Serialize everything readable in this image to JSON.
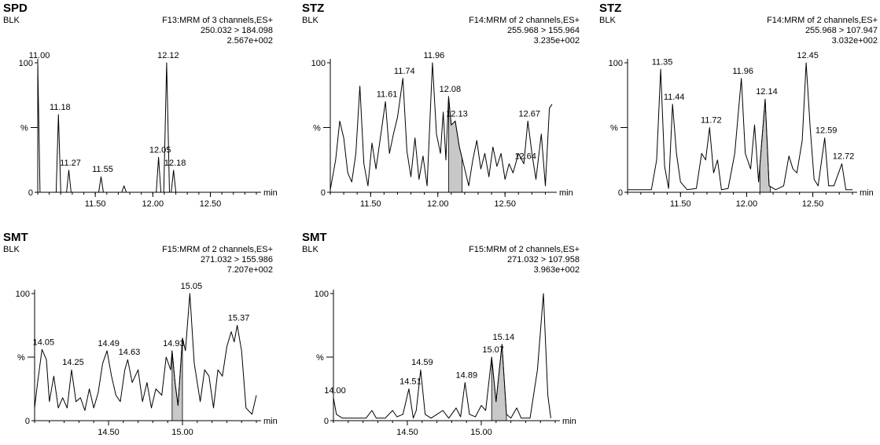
{
  "chart_data": [
    {
      "type": "line",
      "title": "SPD",
      "subtitle": "BLK",
      "header": [
        "F13:MRM of 3 channels,ES+",
        "250.032 > 184.098",
        "2.567e+002"
      ],
      "xlabel": "min",
      "ylabel": "%",
      "xlim": [
        11.0,
        12.9
      ],
      "ylim": [
        0,
        100
      ],
      "xticks": [
        11.5,
        12.0,
        12.5
      ],
      "xtick_labels": [
        "11.50",
        "12.00",
        "12.50"
      ],
      "yticks": [
        0,
        100
      ],
      "ytick_labels": [
        "0",
        "100"
      ],
      "peaks": [
        {
          "label": "11.00",
          "x": 11.0,
          "y": 100,
          "width": 0.02
        },
        {
          "label": "11.18",
          "x": 11.18,
          "y": 60,
          "width": 0.02
        },
        {
          "label": "11.27",
          "x": 11.27,
          "y": 17,
          "width": 0.02
        },
        {
          "label": "11.55",
          "x": 11.55,
          "y": 12,
          "width": 0.02
        },
        {
          "label": "",
          "x": 11.75,
          "y": 5,
          "width": 0.02
        },
        {
          "label": "12.05",
          "x": 12.05,
          "y": 27,
          "width": 0.02
        },
        {
          "label": "12.12",
          "x": 12.12,
          "y": 100,
          "width": 0.025
        },
        {
          "label": "12.18",
          "x": 12.18,
          "y": 17,
          "width": 0.02
        }
      ]
    },
    {
      "type": "line",
      "title": "STZ",
      "subtitle": "BLK",
      "header": [
        "F14:MRM of 2 channels,ES+",
        "255.968 > 155.964",
        "3.235e+002"
      ],
      "xlabel": "min",
      "ylabel": "%",
      "xlim": [
        11.2,
        12.85
      ],
      "ylim": [
        0,
        100
      ],
      "xticks": [
        11.5,
        12.0,
        12.5
      ],
      "xtick_labels": [
        "11.50",
        "12.00",
        "12.50"
      ],
      "yticks": [
        0,
        100
      ],
      "ytick_labels": [
        "0",
        "100"
      ],
      "shaded": [
        12.08,
        12.18
      ],
      "points": [
        [
          11.2,
          2
        ],
        [
          11.24,
          25
        ],
        [
          11.27,
          55
        ],
        [
          11.3,
          42
        ],
        [
          11.33,
          15
        ],
        [
          11.36,
          8
        ],
        [
          11.39,
          30
        ],
        [
          11.42,
          82
        ],
        [
          11.45,
          22
        ],
        [
          11.48,
          5
        ],
        [
          11.51,
          38
        ],
        [
          11.54,
          18
        ],
        [
          11.57,
          40
        ],
        [
          11.61,
          70
        ],
        [
          11.64,
          30
        ],
        [
          11.67,
          45
        ],
        [
          11.7,
          58
        ],
        [
          11.74,
          88
        ],
        [
          11.77,
          32
        ],
        [
          11.8,
          12
        ],
        [
          11.83,
          42
        ],
        [
          11.86,
          10
        ],
        [
          11.89,
          28
        ],
        [
          11.92,
          5
        ],
        [
          11.96,
          100
        ],
        [
          11.99,
          45
        ],
        [
          12.02,
          30
        ],
        [
          12.04,
          62
        ],
        [
          12.06,
          25
        ],
        [
          12.08,
          74
        ],
        [
          12.1,
          52
        ],
        [
          12.13,
          55
        ],
        [
          12.16,
          35
        ],
        [
          12.2,
          18
        ],
        [
          12.23,
          5
        ],
        [
          12.26,
          25
        ],
        [
          12.29,
          40
        ],
        [
          12.32,
          18
        ],
        [
          12.35,
          30
        ],
        [
          12.38,
          12
        ],
        [
          12.41,
          35
        ],
        [
          12.44,
          20
        ],
        [
          12.47,
          30
        ],
        [
          12.5,
          10
        ],
        [
          12.53,
          22
        ],
        [
          12.56,
          15
        ],
        [
          12.6,
          30
        ],
        [
          12.64,
          22
        ],
        [
          12.67,
          55
        ],
        [
          12.7,
          30
        ],
        [
          12.73,
          10
        ],
        [
          12.77,
          45
        ],
        [
          12.8,
          5
        ],
        [
          12.83,
          65
        ],
        [
          12.85,
          68
        ]
      ],
      "labels": [
        {
          "label": "11.61",
          "x": 11.61,
          "y": 70
        },
        {
          "label": "11.74",
          "x": 11.74,
          "y": 88
        },
        {
          "label": "11.96",
          "x": 11.96,
          "y": 100
        },
        {
          "label": "12.08",
          "x": 12.08,
          "y": 74
        },
        {
          "label": "12.13",
          "x": 12.13,
          "y": 55
        },
        {
          "label": "12.67",
          "x": 12.67,
          "y": 55
        },
        {
          "label": "12.64",
          "x": 12.64,
          "y": 22
        }
      ]
    },
    {
      "type": "line",
      "title": "STZ",
      "subtitle": "BLK",
      "header": [
        "F14:MRM of 2 channels,ES+",
        "255.968 > 107.947",
        "3.032e+002"
      ],
      "xlabel": "min",
      "ylabel": "%",
      "xlim": [
        11.1,
        12.8
      ],
      "ylim": [
        0,
        100
      ],
      "xticks": [
        11.5,
        12.0,
        12.5
      ],
      "xtick_labels": [
        "11.50",
        "12.00",
        "12.50"
      ],
      "yticks": [
        0,
        100
      ],
      "ytick_labels": [
        "0",
        "100"
      ],
      "shaded": [
        12.1,
        12.18
      ],
      "points": [
        [
          11.1,
          2
        ],
        [
          11.28,
          2
        ],
        [
          11.32,
          25
        ],
        [
          11.35,
          95
        ],
        [
          11.38,
          20
        ],
        [
          11.41,
          3
        ],
        [
          11.44,
          68
        ],
        [
          11.47,
          30
        ],
        [
          11.5,
          8
        ],
        [
          11.55,
          2
        ],
        [
          11.62,
          3
        ],
        [
          11.66,
          30
        ],
        [
          11.69,
          25
        ],
        [
          11.72,
          50
        ],
        [
          11.75,
          15
        ],
        [
          11.78,
          25
        ],
        [
          11.81,
          2
        ],
        [
          11.86,
          3
        ],
        [
          11.91,
          30
        ],
        [
          11.96,
          88
        ],
        [
          11.99,
          30
        ],
        [
          12.03,
          18
        ],
        [
          12.06,
          52
        ],
        [
          12.09,
          8
        ],
        [
          12.14,
          72
        ],
        [
          12.17,
          5
        ],
        [
          12.22,
          2
        ],
        [
          12.28,
          5
        ],
        [
          12.32,
          28
        ],
        [
          12.35,
          18
        ],
        [
          12.38,
          15
        ],
        [
          12.42,
          40
        ],
        [
          12.45,
          100
        ],
        [
          12.48,
          50
        ],
        [
          12.51,
          10
        ],
        [
          12.54,
          5
        ],
        [
          12.59,
          42
        ],
        [
          12.62,
          5
        ],
        [
          12.66,
          5
        ],
        [
          12.72,
          22
        ],
        [
          12.75,
          2
        ],
        [
          12.8,
          2
        ]
      ],
      "labels": [
        {
          "label": "11.35",
          "x": 11.35,
          "y": 95
        },
        {
          "label": "11.44",
          "x": 11.44,
          "y": 68
        },
        {
          "label": "11.72",
          "x": 11.72,
          "y": 50
        },
        {
          "label": "11.96",
          "x": 11.96,
          "y": 88
        },
        {
          "label": "12.14",
          "x": 12.14,
          "y": 72
        },
        {
          "label": "12.45",
          "x": 12.45,
          "y": 100
        },
        {
          "label": "12.59",
          "x": 12.59,
          "y": 42
        },
        {
          "label": "12.72",
          "x": 12.72,
          "y": 22
        }
      ]
    },
    {
      "type": "line",
      "title": "SMT",
      "subtitle": "BLK",
      "header": [
        "F15:MRM of 2 channels,ES+",
        "271.032 > 155.986",
        "7.207e+002"
      ],
      "xlabel": "min",
      "ylabel": "%",
      "xlim": [
        14.0,
        15.5
      ],
      "ylim": [
        0,
        100
      ],
      "xticks": [
        14.5,
        15.0
      ],
      "xtick_labels": [
        "14.50",
        "15.00"
      ],
      "yticks": [
        0,
        100
      ],
      "ytick_labels": [
        "0",
        "100"
      ],
      "shaded": [
        14.93,
        15.0
      ],
      "points": [
        [
          14.0,
          10
        ],
        [
          14.02,
          30
        ],
        [
          14.05,
          56
        ],
        [
          14.08,
          48
        ],
        [
          14.1,
          15
        ],
        [
          14.13,
          35
        ],
        [
          14.16,
          10
        ],
        [
          14.19,
          18
        ],
        [
          14.22,
          10
        ],
        [
          14.25,
          40
        ],
        [
          14.28,
          15
        ],
        [
          14.31,
          18
        ],
        [
          14.34,
          8
        ],
        [
          14.37,
          25
        ],
        [
          14.4,
          10
        ],
        [
          14.43,
          22
        ],
        [
          14.46,
          45
        ],
        [
          14.49,
          55
        ],
        [
          14.52,
          35
        ],
        [
          14.55,
          20
        ],
        [
          14.58,
          15
        ],
        [
          14.61,
          40
        ],
        [
          14.63,
          48
        ],
        [
          14.66,
          30
        ],
        [
          14.7,
          40
        ],
        [
          14.73,
          15
        ],
        [
          14.76,
          30
        ],
        [
          14.79,
          10
        ],
        [
          14.82,
          25
        ],
        [
          14.86,
          20
        ],
        [
          14.89,
          50
        ],
        [
          14.92,
          40
        ],
        [
          14.93,
          55
        ],
        [
          14.95,
          30
        ],
        [
          14.97,
          12
        ],
        [
          15.0,
          65
        ],
        [
          15.02,
          55
        ],
        [
          15.05,
          100
        ],
        [
          15.08,
          45
        ],
        [
          15.12,
          15
        ],
        [
          15.15,
          40
        ],
        [
          15.18,
          35
        ],
        [
          15.21,
          10
        ],
        [
          15.24,
          40
        ],
        [
          15.27,
          35
        ],
        [
          15.3,
          58
        ],
        [
          15.33,
          70
        ],
        [
          15.35,
          62
        ],
        [
          15.37,
          75
        ],
        [
          15.4,
          55
        ],
        [
          15.43,
          10
        ],
        [
          15.47,
          5
        ],
        [
          15.5,
          20
        ]
      ],
      "labels": [
        {
          "label": "14.05",
          "x": 14.05,
          "y": 56
        },
        {
          "label": "14.25",
          "x": 14.25,
          "y": 40
        },
        {
          "label": "14.49",
          "x": 14.49,
          "y": 55
        },
        {
          "label": "14.63",
          "x": 14.63,
          "y": 48
        },
        {
          "label": "14.93",
          "x": 14.93,
          "y": 55
        },
        {
          "label": "15.05",
          "x": 15.05,
          "y": 100
        },
        {
          "label": "15.37",
          "x": 15.37,
          "y": 75
        }
      ]
    },
    {
      "type": "line",
      "title": "SMT",
      "subtitle": "BLK",
      "header": [
        "F15:MRM of 2 channels,ES+",
        "271.032 > 107.958",
        "3.963e+002"
      ],
      "xlabel": "min",
      "ylabel": "%",
      "xlim": [
        14.0,
        15.5
      ],
      "ylim": [
        0,
        100
      ],
      "xticks": [
        14.5,
        15.0
      ],
      "xtick_labels": [
        "14.50",
        "15.00"
      ],
      "yticks": [
        0,
        100
      ],
      "ytick_labels": [
        "0",
        "100"
      ],
      "shaded": [
        15.07,
        15.17
      ],
      "points": [
        [
          14.0,
          18
        ],
        [
          14.02,
          5
        ],
        [
          14.06,
          2
        ],
        [
          14.15,
          2
        ],
        [
          14.22,
          2
        ],
        [
          14.26,
          8
        ],
        [
          14.29,
          2
        ],
        [
          14.35,
          2
        ],
        [
          14.4,
          8
        ],
        [
          14.43,
          3
        ],
        [
          14.47,
          5
        ],
        [
          14.51,
          25
        ],
        [
          14.54,
          2
        ],
        [
          14.56,
          8
        ],
        [
          14.59,
          40
        ],
        [
          14.62,
          5
        ],
        [
          14.66,
          2
        ],
        [
          14.7,
          5
        ],
        [
          14.74,
          8
        ],
        [
          14.78,
          2
        ],
        [
          14.83,
          10
        ],
        [
          14.86,
          3
        ],
        [
          14.89,
          30
        ],
        [
          14.92,
          5
        ],
        [
          14.96,
          3
        ],
        [
          15.0,
          12
        ],
        [
          15.03,
          8
        ],
        [
          15.07,
          50
        ],
        [
          15.1,
          15
        ],
        [
          15.14,
          60
        ],
        [
          15.17,
          5
        ],
        [
          15.2,
          2
        ],
        [
          15.24,
          10
        ],
        [
          15.27,
          2
        ],
        [
          15.33,
          2
        ],
        [
          15.38,
          40
        ],
        [
          15.42,
          100
        ],
        [
          15.45,
          20
        ],
        [
          15.47,
          2
        ]
      ],
      "labels": [
        {
          "label": "14.00",
          "x": 14.0,
          "y": 18
        },
        {
          "label": "14.51",
          "x": 14.51,
          "y": 25
        },
        {
          "label": "14.59",
          "x": 14.59,
          "y": 40
        },
        {
          "label": "14.89",
          "x": 14.89,
          "y": 30
        },
        {
          "label": "15.07",
          "x": 15.07,
          "y": 50
        },
        {
          "label": "15.14",
          "x": 15.14,
          "y": 60
        }
      ]
    }
  ]
}
